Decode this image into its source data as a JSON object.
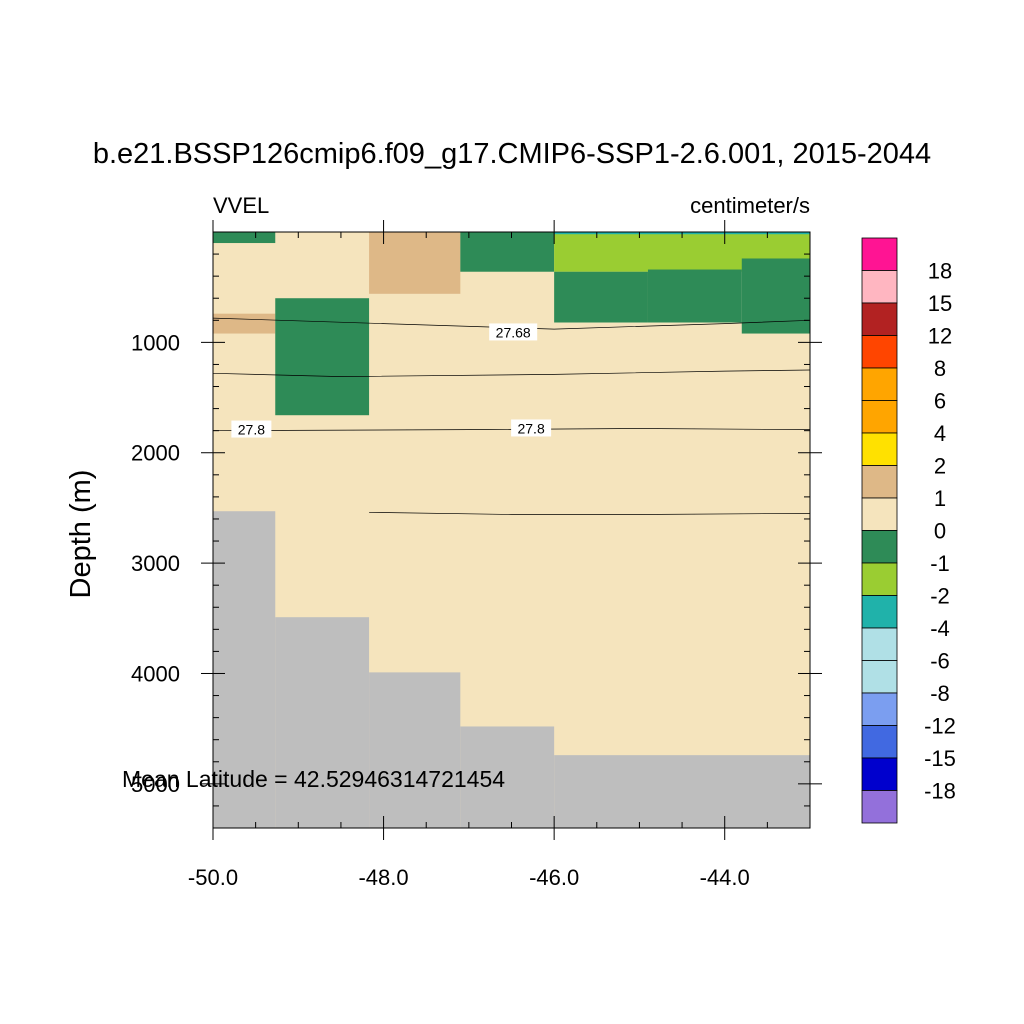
{
  "chart_data": {
    "type": "heatmap",
    "title": "b.e21.BSSP126cmip6.f09_g17.CMIP6-SSP1-2.6.001, 2015-2044",
    "left_label": "VVEL",
    "right_label": "centimeter/s",
    "ylabel": "Depth (m)",
    "xlabel": "",
    "xlim": [
      -50.0,
      -43.0
    ],
    "ylim": [
      0,
      5400
    ],
    "y_reversed": true,
    "x_ticks": [
      "-50.0",
      "-48.0",
      "-46.0",
      "-44.0"
    ],
    "x_tick_values": [
      -50,
      -48,
      -46,
      -44
    ],
    "y_ticks": [
      "1000",
      "2000",
      "3000",
      "4000",
      "5000"
    ],
    "y_tick_values": [
      1000,
      2000,
      3000,
      4000,
      5000
    ],
    "annotation": "Mean Latitude = 42.52946314721454",
    "missing_color": "#bebebe",
    "colorbar": {
      "labels": [
        "18",
        "15",
        "12",
        "8",
        "6",
        "4",
        "2",
        "1",
        "0",
        "-1",
        "-2",
        "-4",
        "-6",
        "-8",
        "-12",
        "-15",
        "-18"
      ],
      "colors": [
        "#ff1493",
        "#ffb6c1",
        "#b22222",
        "#ff4500",
        "#ffa500",
        "#ffa500",
        "#ffe100",
        "#deb887",
        "#f5e4bd",
        "#2e8b57",
        "#9acd32",
        "#20b2aa",
        "#b0e0e6",
        "#b0e0e6",
        "#7b9ef0",
        "#4169e1",
        "#0000cd",
        "#9370db"
      ]
    },
    "background_color": "#f5e4bd",
    "cells": [
      {
        "x": [
          -50.0,
          -49.27
        ],
        "y": [
          0,
          100
        ],
        "color": "#2e8b57"
      },
      {
        "x": [
          -48.17,
          -47.1
        ],
        "y": [
          0,
          560
        ],
        "color": "#deb887"
      },
      {
        "x": [
          -47.1,
          -46.0
        ],
        "y": [
          0,
          360
        ],
        "color": "#2e8b57"
      },
      {
        "x": [
          -46.0,
          -43.0
        ],
        "y": [
          0,
          360
        ],
        "color": "#9acd32"
      },
      {
        "x": [
          -46.0,
          -44.9
        ],
        "y": [
          360,
          820
        ],
        "color": "#2e8b57"
      },
      {
        "x": [
          -44.9,
          -43.8
        ],
        "y": [
          340,
          820
        ],
        "color": "#2e8b57"
      },
      {
        "x": [
          -43.8,
          -43.0
        ],
        "y": [
          240,
          920
        ],
        "color": "#2e8b57"
      },
      {
        "x": [
          -50.0,
          -49.27
        ],
        "y": [
          740,
          920
        ],
        "color": "#deb887"
      },
      {
        "x": [
          -49.27,
          -48.17
        ],
        "y": [
          600,
          1660
        ],
        "color": "#2e8b57"
      },
      {
        "x": [
          -46.0,
          -43.0
        ],
        "y": [
          0,
          20
        ],
        "color": "#20b2aa"
      }
    ],
    "bathymetry": [
      {
        "x": [
          -50.0,
          -49.27
        ],
        "top": 2530
      },
      {
        "x": [
          -49.27,
          -48.17
        ],
        "top": 3490
      },
      {
        "x": [
          -48.17,
          -47.1
        ],
        "top": 3990
      },
      {
        "x": [
          -47.1,
          -46.0
        ],
        "top": 4480
      },
      {
        "x": [
          -46.0,
          -43.0
        ],
        "top": 4740
      }
    ],
    "contours": [
      {
        "level": "27.68",
        "label_at": [
          -46.48,
          910
        ],
        "points": [
          [
            -50.0,
            780
          ],
          [
            -48.0,
            830
          ],
          [
            -46.0,
            880
          ],
          [
            -44.0,
            830
          ],
          [
            -43.0,
            800
          ]
        ]
      },
      {
        "level": "",
        "points": [
          [
            -50.0,
            1280
          ],
          [
            -48.5,
            1310
          ],
          [
            -46.0,
            1290
          ],
          [
            -44.0,
            1260
          ],
          [
            -43.0,
            1250
          ]
        ]
      },
      {
        "level": "27.8",
        "label_at": [
          -49.55,
          1790
        ],
        "points": [
          [
            -50.0,
            1800
          ],
          [
            -47.0,
            1790
          ],
          [
            -45.0,
            1780
          ],
          [
            -43.0,
            1790
          ]
        ]
      },
      {
        "level": "27.8",
        "label_at": [
          -46.27,
          1780
        ],
        "points": []
      },
      {
        "level": "",
        "points": [
          [
            -48.17,
            2540
          ],
          [
            -46.5,
            2560
          ],
          [
            -45.0,
            2560
          ],
          [
            -43.0,
            2550
          ]
        ]
      }
    ]
  }
}
